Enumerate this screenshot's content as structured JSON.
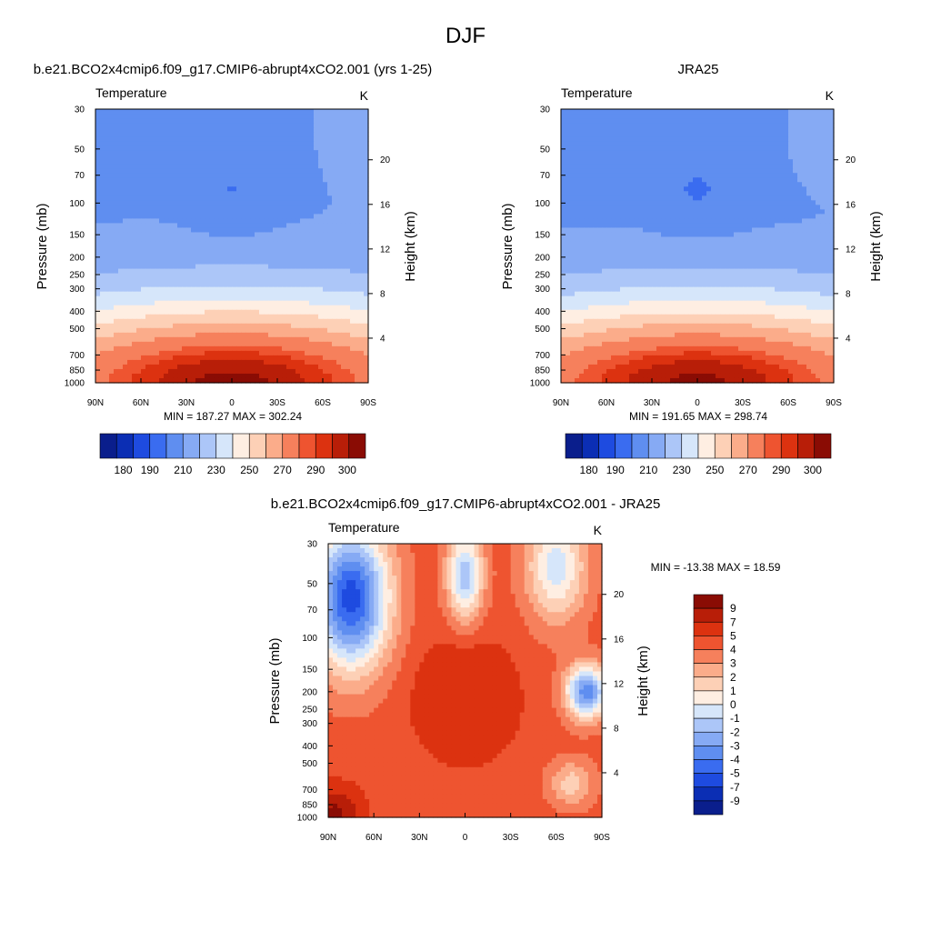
{
  "page": {
    "title": "DJF"
  },
  "chart_data": [
    {
      "type": "heatmap",
      "id": "model",
      "title": "b.e21.BCO2x4cmip6.f09_g17.CMIP6-abrupt4xCO2.001 (yrs 1-25)",
      "field": "Temperature",
      "units": "K",
      "xlabel": "",
      "ylabel": "Pressure (mb)",
      "ylabel_right": "Height (km)",
      "xticks": [
        "90N",
        "60N",
        "30N",
        "0",
        "30S",
        "60S",
        "90S"
      ],
      "yticks": [
        "30",
        "50",
        "70",
        "100",
        "150",
        "200",
        "250",
        "300",
        "400",
        "500",
        "700",
        "850",
        "1000"
      ],
      "ytick_values": [
        30,
        50,
        70,
        100,
        150,
        200,
        250,
        300,
        400,
        500,
        700,
        850,
        1000
      ],
      "height_ticks": [
        "20",
        "16",
        "12",
        "8",
        "4"
      ],
      "height_values": [
        20,
        16,
        12,
        8,
        4
      ],
      "min": 187.27,
      "max": 302.24,
      "minmax_label": "MIN = 187.27  MAX = 302.24",
      "colorbar_labels": [
        "180",
        "190",
        "210",
        "230",
        "250",
        "270",
        "290",
        "300"
      ],
      "mode": "abs"
    },
    {
      "type": "heatmap",
      "id": "obs",
      "title": "JRA25",
      "field": "Temperature",
      "units": "K",
      "xlabel": "",
      "ylabel": "Pressure (mb)",
      "ylabel_right": "Height (km)",
      "xticks": [
        "90N",
        "60N",
        "30N",
        "0",
        "30S",
        "60S",
        "90S"
      ],
      "yticks": [
        "30",
        "50",
        "70",
        "100",
        "150",
        "200",
        "250",
        "300",
        "400",
        "500",
        "700",
        "850",
        "1000"
      ],
      "ytick_values": [
        30,
        50,
        70,
        100,
        150,
        200,
        250,
        300,
        400,
        500,
        700,
        850,
        1000
      ],
      "height_ticks": [
        "20",
        "16",
        "12",
        "8",
        "4"
      ],
      "height_values": [
        20,
        16,
        12,
        8,
        4
      ],
      "min": 191.65,
      "max": 298.74,
      "minmax_label": "MIN = 191.65  MAX = 298.74",
      "colorbar_labels": [
        "180",
        "190",
        "210",
        "230",
        "250",
        "270",
        "290",
        "300"
      ],
      "mode": "abs"
    },
    {
      "type": "heatmap",
      "id": "diff",
      "title": "b.e21.BCO2x4cmip6.f09_g17.CMIP6-abrupt4xCO2.001 - JRA25",
      "field": "Temperature",
      "units": "K",
      "xlabel": "",
      "ylabel": "Pressure (mb)",
      "ylabel_right": "Height (km)",
      "xticks": [
        "90N",
        "60N",
        "30N",
        "0",
        "30S",
        "60S",
        "90S"
      ],
      "yticks": [
        "30",
        "50",
        "70",
        "100",
        "150",
        "200",
        "250",
        "300",
        "400",
        "500",
        "700",
        "850",
        "1000"
      ],
      "ytick_values": [
        30,
        50,
        70,
        100,
        150,
        200,
        250,
        300,
        400,
        500,
        700,
        850,
        1000
      ],
      "height_ticks": [
        "20",
        "16",
        "12",
        "8",
        "4"
      ],
      "height_values": [
        20,
        16,
        12,
        8,
        4
      ],
      "min": -13.38,
      "max": 18.59,
      "minmax_label": "MIN = -13.38  MAX =  18.59",
      "colorbar_labels": [
        "9",
        "7",
        "5",
        "4",
        "3",
        "2",
        "1",
        "0",
        "-1",
        "-2",
        "-3",
        "-4",
        "-5",
        "-7",
        "-9"
      ],
      "mode": "diff"
    }
  ],
  "palette": [
    "#0a1e8c",
    "#0b2eb4",
    "#1e4be0",
    "#3a6cf0",
    "#5f8ef0",
    "#86aaf4",
    "#acc6f8",
    "#d6e6fa",
    "#feeee2",
    "#fdd0b6",
    "#fbac8a",
    "#f6805c",
    "#ee5430",
    "#dc3210",
    "#b81e08",
    "#8a0c04"
  ]
}
